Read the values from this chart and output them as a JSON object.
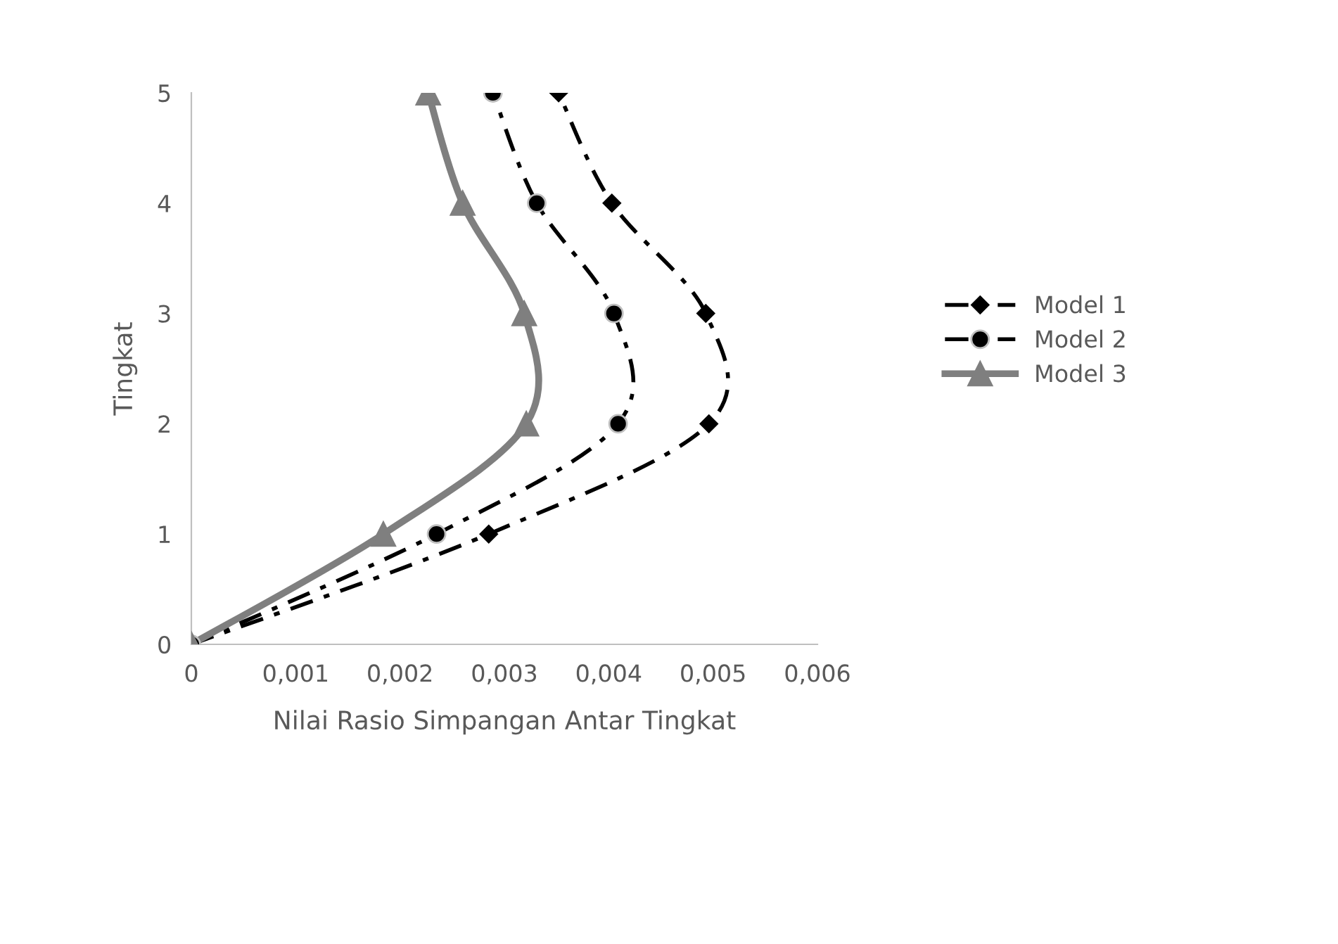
{
  "chart_data": {
    "type": "line",
    "xlabel": "Nilai Rasio Simpangan Antar Tingkat",
    "ylabel": "Tingkat",
    "xlim": [
      0,
      0.006
    ],
    "xticks": [
      0,
      {
        "value": 0.001,
        "label": "0,001"
      },
      {
        "value": 0.002,
        "label": "0,002"
      },
      {
        "value": 0.003,
        "label": "0,003"
      },
      {
        "value": 0.004,
        "label": "0,004"
      },
      {
        "value": 0.005,
        "label": "0,005"
      },
      {
        "value": 0.006,
        "label": "0,006"
      }
    ],
    "ylim": [
      0,
      5
    ],
    "yticks": [
      0,
      1,
      2,
      3,
      4,
      5
    ],
    "grid": false,
    "legend": "right",
    "series": [
      {
        "name": "Model 1",
        "color": "#000000",
        "marker": "diamond",
        "line_style": "dashed",
        "x": [
          0,
          0.00285,
          0.00496,
          0.00493,
          0.00403,
          0.00352
        ],
        "values": [
          0,
          1,
          2,
          3,
          4,
          5
        ]
      },
      {
        "name": "Model 2",
        "color": "#000000",
        "marker": "circle",
        "line_style": "dashed",
        "x": [
          0,
          0.00235,
          0.00409,
          0.00405,
          0.00331,
          0.00289
        ],
        "values": [
          0,
          1,
          2,
          3,
          4,
          5
        ]
      },
      {
        "name": "Model 3",
        "color": "#7f7f7f",
        "marker": "triangle",
        "line_style": "solid",
        "x": [
          0,
          0.00184,
          0.00321,
          0.00319,
          0.0026,
          0.00227
        ],
        "values": [
          0,
          1,
          2,
          3,
          4,
          5
        ]
      }
    ]
  }
}
